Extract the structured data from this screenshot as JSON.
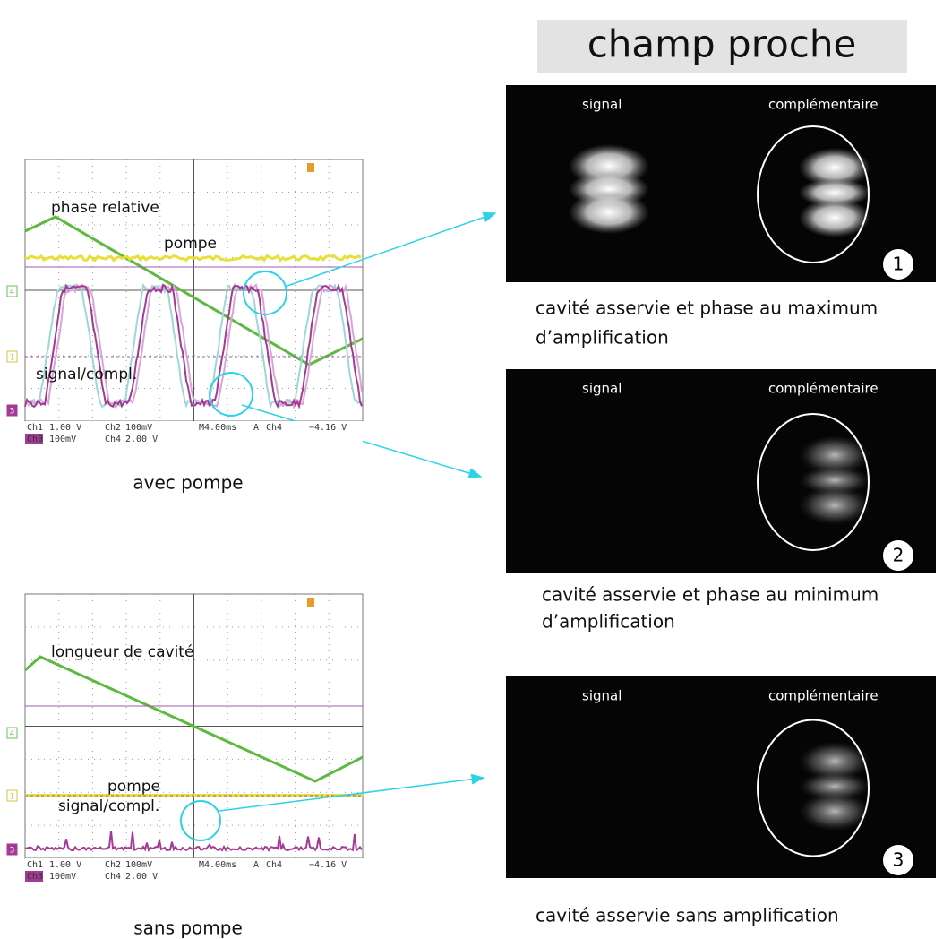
{
  "title": "champ proche",
  "scopes": [
    {
      "labels": [
        "phase relative",
        "pompe",
        "signal/compl."
      ],
      "markers": [
        "4",
        "1",
        "3"
      ],
      "readout": [
        [
          "Ch1",
          "1.00 V",
          "Ch2",
          "100mV",
          "M4.00ms",
          "A",
          "Ch4",
          "−4.16 V"
        ],
        [
          "Ch3",
          "100mV",
          "Ch4",
          "2.00 V"
        ]
      ],
      "caption": "avec pompe"
    },
    {
      "labels": [
        "longueur de cavité",
        "pompe",
        "signal/compl."
      ],
      "markers": [
        "4",
        "1",
        "3"
      ],
      "readout": [
        [
          "Ch1",
          "1.00 V",
          "Ch2",
          "100mV",
          "M4.00ms",
          "A",
          "Ch4",
          "−4.16 V"
        ],
        [
          "Ch3",
          "100mV",
          "Ch4",
          "2.00 V"
        ]
      ],
      "caption": "sans pompe"
    }
  ],
  "images": [
    {
      "left_label": "signal",
      "right_label": "complémentaire",
      "number": "1",
      "caption": [
        "cavité  asservie et phase au maximum",
        "d’amplification"
      ]
    },
    {
      "left_label": "signal",
      "right_label": "complémentaire",
      "number": "2",
      "caption": [
        "cavité  asservie et phase au minimum",
        "d’amplification"
      ]
    },
    {
      "left_label": "signal",
      "right_label": "complémentaire",
      "number": "3",
      "caption": [
        "cavité  asservie sans amplification"
      ]
    }
  ]
}
